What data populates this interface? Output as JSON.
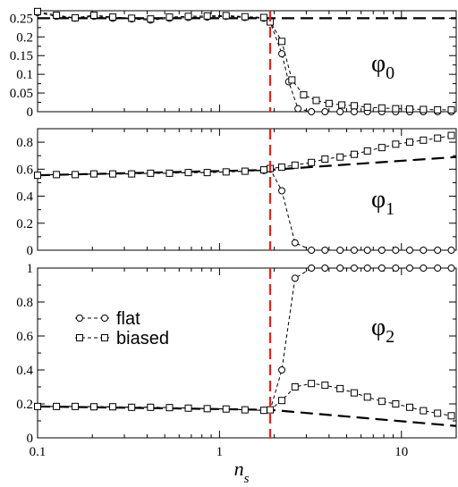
{
  "figure": {
    "xlabel_main": "n",
    "xlabel_sub": "s",
    "x_tick_labels": [
      "0.1",
      "1",
      "10"
    ]
  },
  "chart_data": [
    {
      "type": "line",
      "panel_label_main": "φ",
      "panel_label_sub": "0",
      "xscale": "log",
      "xlim": [
        0.1,
        20
      ],
      "ylim": [
        0,
        0.27
      ],
      "y_ticks": [
        0,
        0.05,
        0.1,
        0.15,
        0.2,
        0.25
      ],
      "y_tick_labels": [
        "0",
        "0.05",
        "0.1",
        "0.15",
        "0.2",
        "0.25"
      ],
      "vline_x": 1.9,
      "reference_line": {
        "x": [
          0.1,
          20
        ],
        "y": [
          0.25,
          0.25
        ]
      },
      "series": [
        {
          "marker": "circle",
          "x": [
            0.1,
            0.127,
            0.161,
            0.204,
            0.259,
            0.329,
            0.418,
            0.531,
            0.674,
            0.856,
            1.087,
            1.38,
            1.752,
            1.9,
            2.2,
            2.4,
            2.7,
            3.2,
            3.8,
            4.6,
            5.5,
            6.5,
            7.8,
            9.3,
            11.1,
            13.2,
            15.8,
            18.8
          ],
          "y": [
            0.265,
            0.255,
            0.25,
            0.255,
            0.25,
            0.248,
            0.245,
            0.25,
            0.252,
            0.253,
            0.255,
            0.252,
            0.25,
            0.24,
            0.155,
            0.08,
            0.008,
            0,
            0,
            0,
            0,
            0,
            0,
            0,
            0,
            0,
            0,
            0
          ]
        },
        {
          "marker": "square",
          "x": [
            0.1,
            0.127,
            0.161,
            0.204,
            0.259,
            0.329,
            0.418,
            0.531,
            0.674,
            0.856,
            1.087,
            1.38,
            1.752,
            1.9,
            2.2,
            2.5,
            2.9,
            3.4,
            4.0,
            4.7,
            5.5,
            6.5,
            7.8,
            9.3,
            11.1,
            13.2,
            15.8,
            18.8
          ],
          "y": [
            0.268,
            0.258,
            0.251,
            0.258,
            0.253,
            0.25,
            0.248,
            0.253,
            0.255,
            0.256,
            0.257,
            0.254,
            0.252,
            0.24,
            0.188,
            0.085,
            0.045,
            0.03,
            0.022,
            0.018,
            0.016,
            0.012,
            0.01,
            0.008,
            0.007,
            0.006,
            0.005,
            0.005
          ]
        }
      ]
    },
    {
      "type": "line",
      "panel_label_main": "φ",
      "panel_label_sub": "1",
      "xscale": "log",
      "xlim": [
        0.1,
        20
      ],
      "ylim": [
        0,
        0.9
      ],
      "y_ticks": [
        0,
        0.2,
        0.4,
        0.6,
        0.8
      ],
      "y_tick_labels": [
        "0",
        "0.2",
        "0.4",
        "0.6",
        "0.8"
      ],
      "vline_x": 1.9,
      "reference_line": {
        "x": [
          0.1,
          1.9,
          20
        ],
        "y": [
          0.555,
          0.595,
          0.69
        ]
      },
      "series": [
        {
          "marker": "circle",
          "x": [
            0.1,
            0.127,
            0.161,
            0.204,
            0.259,
            0.329,
            0.418,
            0.531,
            0.674,
            0.856,
            1.087,
            1.38,
            1.752,
            1.9,
            2.2,
            2.6,
            3.2,
            3.8,
            4.6,
            5.5,
            6.5,
            7.8,
            9.3,
            11.1,
            13.2,
            15.8,
            18.8
          ],
          "y": [
            0.555,
            0.56,
            0.56,
            0.565,
            0.565,
            0.565,
            0.57,
            0.57,
            0.575,
            0.575,
            0.58,
            0.585,
            0.59,
            0.6,
            0.44,
            0.055,
            0,
            0,
            0,
            0,
            0,
            0,
            0,
            0,
            0,
            0,
            0
          ]
        },
        {
          "marker": "square",
          "x": [
            0.1,
            0.127,
            0.161,
            0.204,
            0.259,
            0.329,
            0.418,
            0.531,
            0.674,
            0.856,
            1.087,
            1.38,
            1.752,
            1.9,
            2.2,
            2.6,
            3.2,
            3.8,
            4.6,
            5.5,
            6.5,
            7.8,
            9.3,
            11.1,
            13.2,
            15.8,
            18.8
          ],
          "y": [
            0.555,
            0.56,
            0.56,
            0.565,
            0.565,
            0.565,
            0.57,
            0.57,
            0.575,
            0.575,
            0.58,
            0.585,
            0.595,
            0.605,
            0.615,
            0.63,
            0.65,
            0.675,
            0.69,
            0.71,
            0.735,
            0.76,
            0.785,
            0.8,
            0.815,
            0.83,
            0.85
          ]
        }
      ]
    },
    {
      "type": "line",
      "panel_label_main": "φ",
      "panel_label_sub": "2",
      "xscale": "log",
      "xlim": [
        0.1,
        20
      ],
      "ylim": [
        0,
        1
      ],
      "y_ticks": [
        0,
        0.2,
        0.4,
        0.6,
        0.8,
        1
      ],
      "y_tick_labels": [
        "0",
        "0.2",
        "0.4",
        "0.6",
        "0.8",
        "1"
      ],
      "vline_x": 1.9,
      "reference_line": {
        "x": [
          0.1,
          1.9,
          20
        ],
        "y": [
          0.185,
          0.165,
          0.07
        ]
      },
      "legend": {
        "position": "left",
        "entries": [
          "flat",
          "biased"
        ]
      },
      "series": [
        {
          "name": "flat",
          "marker": "circle",
          "x": [
            0.1,
            0.127,
            0.161,
            0.204,
            0.259,
            0.329,
            0.418,
            0.531,
            0.674,
            0.856,
            1.087,
            1.38,
            1.752,
            1.9,
            2.2,
            2.6,
            3.2,
            3.8,
            4.6,
            5.5,
            6.5,
            7.8,
            9.3,
            11.1,
            13.2,
            15.8,
            18.8
          ],
          "y": [
            0.185,
            0.185,
            0.185,
            0.183,
            0.183,
            0.18,
            0.18,
            0.178,
            0.175,
            0.172,
            0.17,
            0.165,
            0.162,
            0.165,
            0.4,
            0.94,
            1,
            1,
            1,
            1,
            1,
            1,
            1,
            1,
            1,
            1,
            1
          ]
        },
        {
          "name": "biased",
          "marker": "square",
          "x": [
            0.1,
            0.127,
            0.161,
            0.204,
            0.259,
            0.329,
            0.418,
            0.531,
            0.674,
            0.856,
            1.087,
            1.38,
            1.752,
            1.9,
            2.2,
            2.6,
            3.2,
            3.8,
            4.6,
            5.5,
            6.5,
            7.8,
            9.3,
            11.1,
            13.2,
            15.8,
            18.8
          ],
          "y": [
            0.185,
            0.185,
            0.185,
            0.183,
            0.183,
            0.18,
            0.18,
            0.178,
            0.175,
            0.172,
            0.17,
            0.165,
            0.162,
            0.165,
            0.22,
            0.3,
            0.32,
            0.31,
            0.29,
            0.265,
            0.24,
            0.215,
            0.2,
            0.18,
            0.16,
            0.145,
            0.13
          ]
        }
      ]
    }
  ]
}
